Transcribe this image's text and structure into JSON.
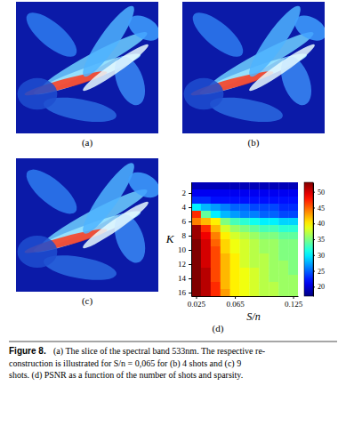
{
  "panels": [
    "(a)",
    "(b)",
    "(c)",
    "(d)"
  ],
  "chart_data": {
    "type": "heatmap",
    "xlabel": "S/n",
    "ylabel": "K",
    "x": [
      0.025,
      0.035,
      0.045,
      0.055,
      0.065,
      0.075,
      0.085,
      0.095,
      0.105,
      0.115,
      0.125
    ],
    "y": [
      1,
      2,
      3,
      4,
      5,
      6,
      7,
      8,
      9,
      10,
      11,
      12,
      13,
      14,
      15,
      16
    ],
    "xlim": [
      0.02,
      0.13
    ],
    "ylim": [
      0.5,
      16.5
    ],
    "xticks": [
      0.025,
      0.065,
      0.125
    ],
    "yticks": [
      2,
      4,
      6,
      8,
      10,
      12,
      14,
      16
    ],
    "z": [
      [
        19,
        19,
        19,
        19,
        19,
        19,
        19,
        19,
        19,
        19,
        19
      ],
      [
        21,
        21,
        21,
        21,
        21,
        21,
        21,
        21,
        21,
        21,
        21
      ],
      [
        23,
        23,
        22,
        22,
        22,
        22,
        22,
        22,
        22,
        22,
        22
      ],
      [
        30,
        28,
        27,
        26,
        25,
        25,
        24,
        24,
        24,
        23,
        23
      ],
      [
        47,
        34,
        30,
        28,
        27,
        26,
        26,
        25,
        25,
        24,
        24
      ],
      [
        44,
        42,
        40,
        35,
        33,
        32,
        31,
        30,
        30,
        29,
        29
      ],
      [
        52,
        47,
        42,
        38,
        36,
        35,
        34,
        33,
        33,
        32,
        32
      ],
      [
        52,
        49,
        44,
        40,
        38,
        37,
        36,
        35,
        35,
        34,
        34
      ],
      [
        53,
        50,
        45,
        41,
        39,
        38,
        37,
        36,
        36,
        35,
        35
      ],
      [
        53,
        50,
        46,
        41,
        39,
        38,
        37,
        36,
        36,
        35,
        35
      ],
      [
        53,
        50,
        46,
        42,
        40,
        38,
        37,
        37,
        36,
        35,
        35
      ],
      [
        53,
        50,
        46,
        42,
        40,
        38,
        37,
        37,
        36,
        36,
        35
      ],
      [
        53,
        51,
        46,
        42,
        40,
        39,
        38,
        37,
        36,
        36,
        35
      ],
      [
        53,
        51,
        46,
        42,
        40,
        39,
        38,
        37,
        36,
        36,
        36
      ],
      [
        53,
        51,
        47,
        42,
        40,
        39,
        38,
        37,
        37,
        36,
        36
      ],
      [
        53,
        51,
        47,
        43,
        40,
        39,
        38,
        37,
        37,
        36,
        36
      ]
    ],
    "colorbar": {
      "range": [
        17,
        53
      ],
      "ticks": [
        20,
        25,
        30,
        35,
        40,
        45,
        50
      ]
    }
  },
  "caption": {
    "label": "Figure 8.",
    "lines": [
      "(a) The slice of the spectral band 533nm. The respective re-",
      "construction is illustrated for S/n = 0,065 for (b) 4 shots and (c) 9",
      "shots. (d) PSNR as a function of the number of shots and sparsity."
    ]
  }
}
